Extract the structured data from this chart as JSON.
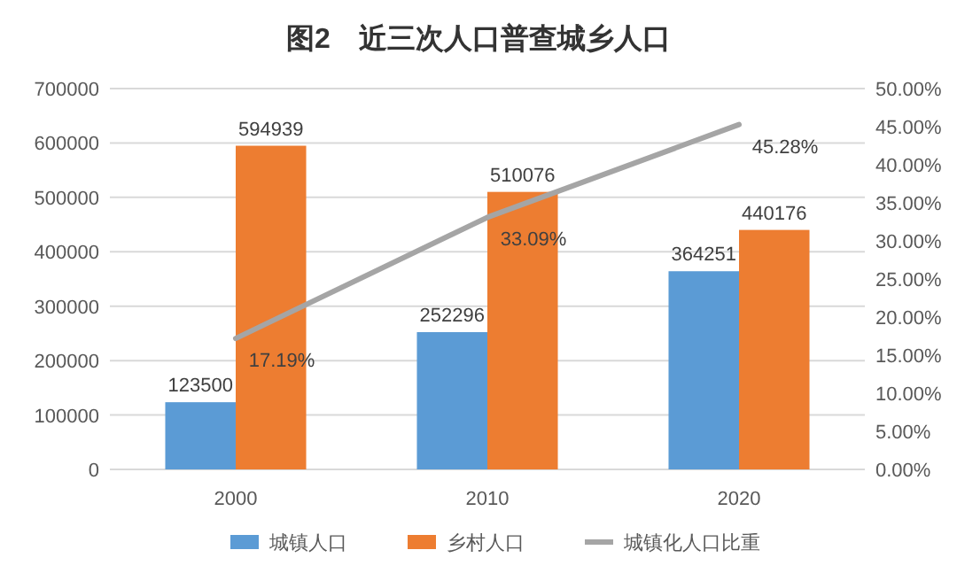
{
  "chart_data": {
    "type": "bar",
    "title": "图2　近三次人口普查城乡人口",
    "categories": [
      "2000",
      "2010",
      "2020"
    ],
    "series": [
      {
        "name": "城镇人口",
        "color": "#5b9bd5",
        "values": [
          123500,
          252296,
          364251
        ]
      },
      {
        "name": "乡村人口",
        "color": "#ed7d31",
        "values": [
          594939,
          510076,
          440176
        ]
      },
      {
        "name": "城镇化人口比重",
        "type": "line",
        "axis": "y2",
        "color": "#a5a5a5",
        "values": [
          17.19,
          33.09,
          45.28
        ],
        "value_labels": [
          "17.19%",
          "33.09%",
          "45.28%"
        ]
      }
    ],
    "ylim": [
      0,
      700000
    ],
    "yticks": [
      0,
      100000,
      200000,
      300000,
      400000,
      500000,
      600000,
      700000
    ],
    "y2lim": [
      0,
      50
    ],
    "y2ticks": [
      {
        "value": 0,
        "label": "0.00%"
      },
      {
        "value": 5,
        "label": "5.00%"
      },
      {
        "value": 10,
        "label": "10.00%"
      },
      {
        "value": 15,
        "label": "15.00%"
      },
      {
        "value": 20,
        "label": "20.00%"
      },
      {
        "value": 25,
        "label": "25.00%"
      },
      {
        "value": 30,
        "label": "30.00%"
      },
      {
        "value": 35,
        "label": "35.00%"
      },
      {
        "value": 40,
        "label": "40.00%"
      },
      {
        "value": 45,
        "label": "45.00%"
      },
      {
        "value": 50,
        "label": "50.00%"
      }
    ],
    "grid": "y",
    "legend": "bottom",
    "data_labels": true,
    "marker": "none"
  }
}
